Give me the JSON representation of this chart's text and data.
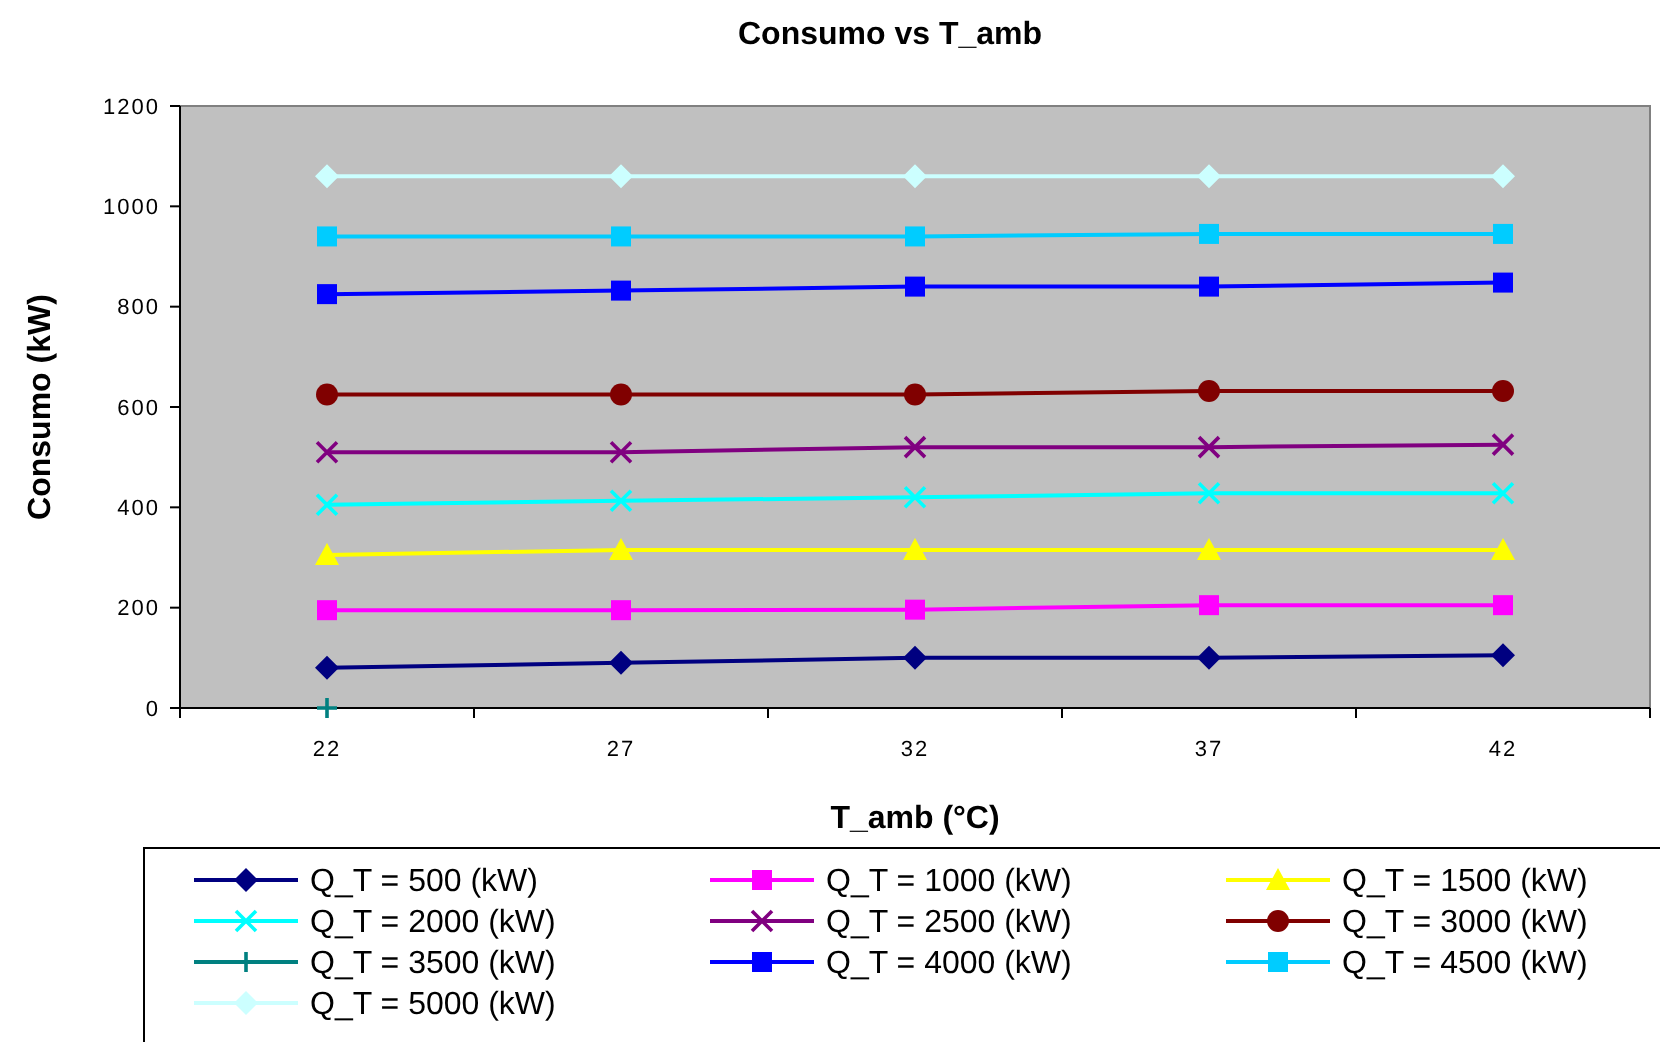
{
  "chart_data": {
    "type": "line",
    "title": "Consumo vs T_amb",
    "xlabel": "T_amb (°C)",
    "ylabel": "Consumo (kW)",
    "categories": [
      "22",
      "27",
      "32",
      "37",
      "42"
    ],
    "ylim": [
      0,
      1200
    ],
    "yticks": [
      0,
      200,
      400,
      600,
      800,
      1000,
      1200
    ],
    "grid": false,
    "legend": "bottom",
    "series": [
      {
        "name": "Q_T = 500 (kW)",
        "color": "#000080",
        "marker": "diamond",
        "values": [
          80,
          90,
          100,
          100,
          105
        ]
      },
      {
        "name": "Q_T = 1000 (kW)",
        "color": "#ff00ff",
        "marker": "square",
        "values": [
          195,
          195,
          196,
          205,
          205
        ]
      },
      {
        "name": "Q_T = 1500 (kW)",
        "color": "#ffff00",
        "marker": "triangle",
        "values": [
          305,
          315,
          315,
          315,
          315
        ]
      },
      {
        "name": "Q_T = 2000 (kW)",
        "color": "#00ffff",
        "marker": "cross",
        "values": [
          405,
          413,
          420,
          428,
          428
        ]
      },
      {
        "name": "Q_T = 2500 (kW)",
        "color": "#800080",
        "marker": "cross",
        "values": [
          510,
          510,
          520,
          520,
          525
        ]
      },
      {
        "name": "Q_T = 3000 (kW)",
        "color": "#800000",
        "marker": "circle",
        "values": [
          625,
          625,
          625,
          632,
          632
        ]
      },
      {
        "name": "Q_T = 3500 (kW)",
        "color": "#008080",
        "marker": "plus",
        "values": [
          0,
          null,
          null,
          null,
          null
        ]
      },
      {
        "name": "Q_T = 4000 (kW)",
        "color": "#0000ff",
        "marker": "square",
        "values": [
          825,
          832,
          840,
          840,
          848
        ]
      },
      {
        "name": "Q_T = 4500 (kW)",
        "color": "#00ccff",
        "marker": "square",
        "values": [
          940,
          940,
          940,
          945,
          945
        ]
      },
      {
        "name": "Q_T = 5000 (kW)",
        "color": "#ccffff",
        "marker": "diamond",
        "values": [
          1060,
          1060,
          1060,
          1060,
          1060
        ]
      }
    ]
  }
}
